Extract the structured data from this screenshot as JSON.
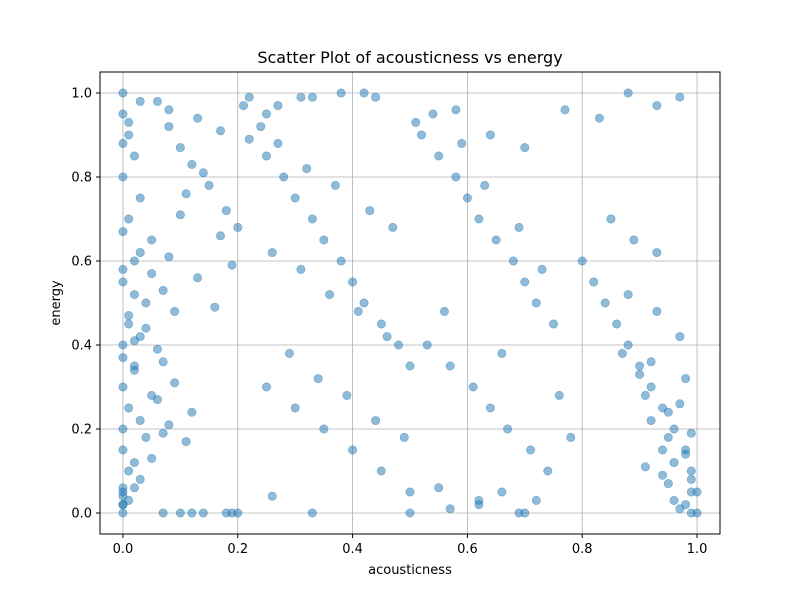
{
  "chart_data": {
    "type": "scatter",
    "title": "Scatter Plot of acousticness vs energy",
    "xlabel": "acousticness",
    "ylabel": "energy",
    "xlim": [
      -0.04,
      1.04
    ],
    "ylim": [
      -0.05,
      1.05
    ],
    "xticks": [
      0.0,
      0.2,
      0.4,
      0.6,
      0.8,
      1.0
    ],
    "xtick_labels": [
      "0.0",
      "0.2",
      "0.4",
      "0.6",
      "0.8",
      "1.0"
    ],
    "yticks": [
      0.0,
      0.2,
      0.4,
      0.6,
      0.8,
      1.0
    ],
    "ytick_labels": [
      "0.0",
      "0.2",
      "0.4",
      "0.6",
      "0.8",
      "1.0"
    ],
    "grid": true,
    "marker_color": "#1f77b4",
    "marker_alpha": 0.5,
    "series": [
      {
        "x": [
          0.0,
          0.01,
          0.02,
          0.0,
          0.03,
          0.01,
          0.05,
          0.02,
          0.0,
          0.04,
          0.06,
          0.08,
          0.1,
          0.12,
          0.15,
          0.18,
          0.2,
          0.22,
          0.01,
          0.0,
          0.02,
          0.03,
          0.05,
          0.07,
          0.09,
          0.11,
          0.14,
          0.17,
          0.19,
          0.21,
          0.0,
          0.01,
          0.02,
          0.04,
          0.06,
          0.08,
          0.1,
          0.13,
          0.16,
          0.0,
          0.02,
          0.03,
          0.05,
          0.07,
          0.09,
          0.12,
          0.0,
          0.01,
          0.03,
          0.04,
          0.06,
          0.08,
          0.11,
          0.0,
          0.02,
          0.05,
          0.07,
          0.0,
          0.01,
          0.03,
          0.0,
          0.02,
          0.0,
          0.01,
          0.0,
          0.0,
          0.01,
          0.0,
          0.02,
          0.0,
          0.25,
          0.28,
          0.3,
          0.33,
          0.35,
          0.38,
          0.4,
          0.42,
          0.45,
          0.48,
          0.5,
          0.25,
          0.3,
          0.35,
          0.4,
          0.45,
          0.5,
          0.24,
          0.27,
          0.32,
          0.37,
          0.43,
          0.47,
          0.26,
          0.31,
          0.36,
          0.41,
          0.46,
          0.29,
          0.34,
          0.39,
          0.44,
          0.49,
          0.25,
          0.33,
          0.42,
          0.52,
          0.55,
          0.58,
          0.6,
          0.62,
          0.65,
          0.68,
          0.7,
          0.72,
          0.75,
          0.53,
          0.57,
          0.61,
          0.64,
          0.67,
          0.71,
          0.74,
          0.54,
          0.59,
          0.63,
          0.69,
          0.73,
          0.56,
          0.66,
          0.76,
          0.78,
          0.55,
          0.62,
          0.7,
          0.8,
          0.82,
          0.84,
          0.86,
          0.88,
          0.9,
          0.92,
          0.94,
          0.96,
          0.98,
          0.99,
          1.0,
          0.85,
          0.89,
          0.93,
          0.97,
          0.91,
          0.95,
          0.99,
          0.87,
          0.92,
          0.96,
          0.98,
          0.9,
          0.94,
          0.97,
          0.99,
          0.93,
          0.95,
          0.98,
          0.91,
          0.96,
          0.99,
          0.88,
          0.94,
          0.97,
          1.0,
          0.95,
          0.98,
          0.92,
          0.99,
          0.1,
          0.12,
          0.14,
          0.18,
          0.19,
          0.2,
          0.0,
          0.0,
          0.0,
          0.07,
          0.33,
          0.26,
          0.69,
          0.57,
          0.5,
          0.62,
          0.66,
          0.72,
          0.03,
          0.08,
          0.13,
          0.17,
          0.22,
          0.27,
          0.31,
          0.38,
          0.44,
          0.51,
          0.58,
          0.64,
          0.7,
          0.77,
          0.83,
          0.88,
          0.93,
          0.97
        ],
        "y": [
          0.95,
          0.9,
          0.85,
          0.8,
          0.75,
          0.7,
          0.65,
          0.6,
          0.55,
          0.5,
          0.98,
          0.92,
          0.87,
          0.83,
          0.78,
          0.72,
          0.68,
          0.99,
          0.45,
          0.4,
          0.35,
          0.62,
          0.57,
          0.53,
          0.48,
          0.76,
          0.81,
          0.66,
          0.59,
          0.97,
          0.3,
          0.25,
          0.52,
          0.44,
          0.39,
          0.61,
          0.71,
          0.56,
          0.49,
          0.2,
          0.34,
          0.42,
          0.28,
          0.36,
          0.31,
          0.24,
          0.15,
          0.1,
          0.22,
          0.18,
          0.27,
          0.21,
          0.17,
          0.05,
          0.12,
          0.13,
          0.19,
          0.0,
          0.03,
          0.08,
          0.02,
          0.06,
          0.88,
          0.93,
          0.67,
          0.58,
          0.47,
          0.37,
          0.41,
          1.0,
          0.85,
          0.8,
          0.75,
          0.7,
          0.65,
          0.6,
          0.55,
          0.5,
          0.45,
          0.4,
          0.35,
          0.3,
          0.25,
          0.2,
          0.15,
          0.1,
          0.05,
          0.92,
          0.88,
          0.82,
          0.78,
          0.72,
          0.68,
          0.62,
          0.58,
          0.52,
          0.48,
          0.42,
          0.38,
          0.32,
          0.28,
          0.22,
          0.18,
          0.95,
          0.99,
          1.0,
          0.9,
          0.85,
          0.8,
          0.75,
          0.7,
          0.65,
          0.6,
          0.55,
          0.5,
          0.45,
          0.4,
          0.35,
          0.3,
          0.25,
          0.2,
          0.15,
          0.1,
          0.95,
          0.88,
          0.78,
          0.68,
          0.58,
          0.48,
          0.38,
          0.28,
          0.18,
          0.06,
          0.03,
          0.0,
          0.6,
          0.55,
          0.5,
          0.45,
          0.4,
          0.35,
          0.3,
          0.25,
          0.2,
          0.15,
          0.1,
          0.05,
          0.7,
          0.65,
          0.62,
          0.42,
          0.28,
          0.18,
          0.08,
          0.38,
          0.22,
          0.12,
          0.02,
          0.33,
          0.15,
          0.26,
          0.0,
          0.48,
          0.07,
          0.32,
          0.11,
          0.03,
          0.19,
          0.52,
          0.09,
          0.01,
          0.0,
          0.24,
          0.14,
          0.36,
          0.05,
          0.0,
          0.0,
          0.0,
          0.0,
          0.0,
          0.0,
          0.02,
          0.04,
          0.06,
          0.0,
          0.0,
          0.04,
          0.0,
          0.01,
          0.0,
          0.02,
          0.05,
          0.03,
          0.98,
          0.96,
          0.94,
          0.91,
          0.89,
          0.97,
          0.99,
          1.0,
          0.99,
          0.93,
          0.96,
          0.9,
          0.87,
          0.96,
          0.94,
          1.0,
          0.97,
          0.99
        ]
      }
    ]
  }
}
